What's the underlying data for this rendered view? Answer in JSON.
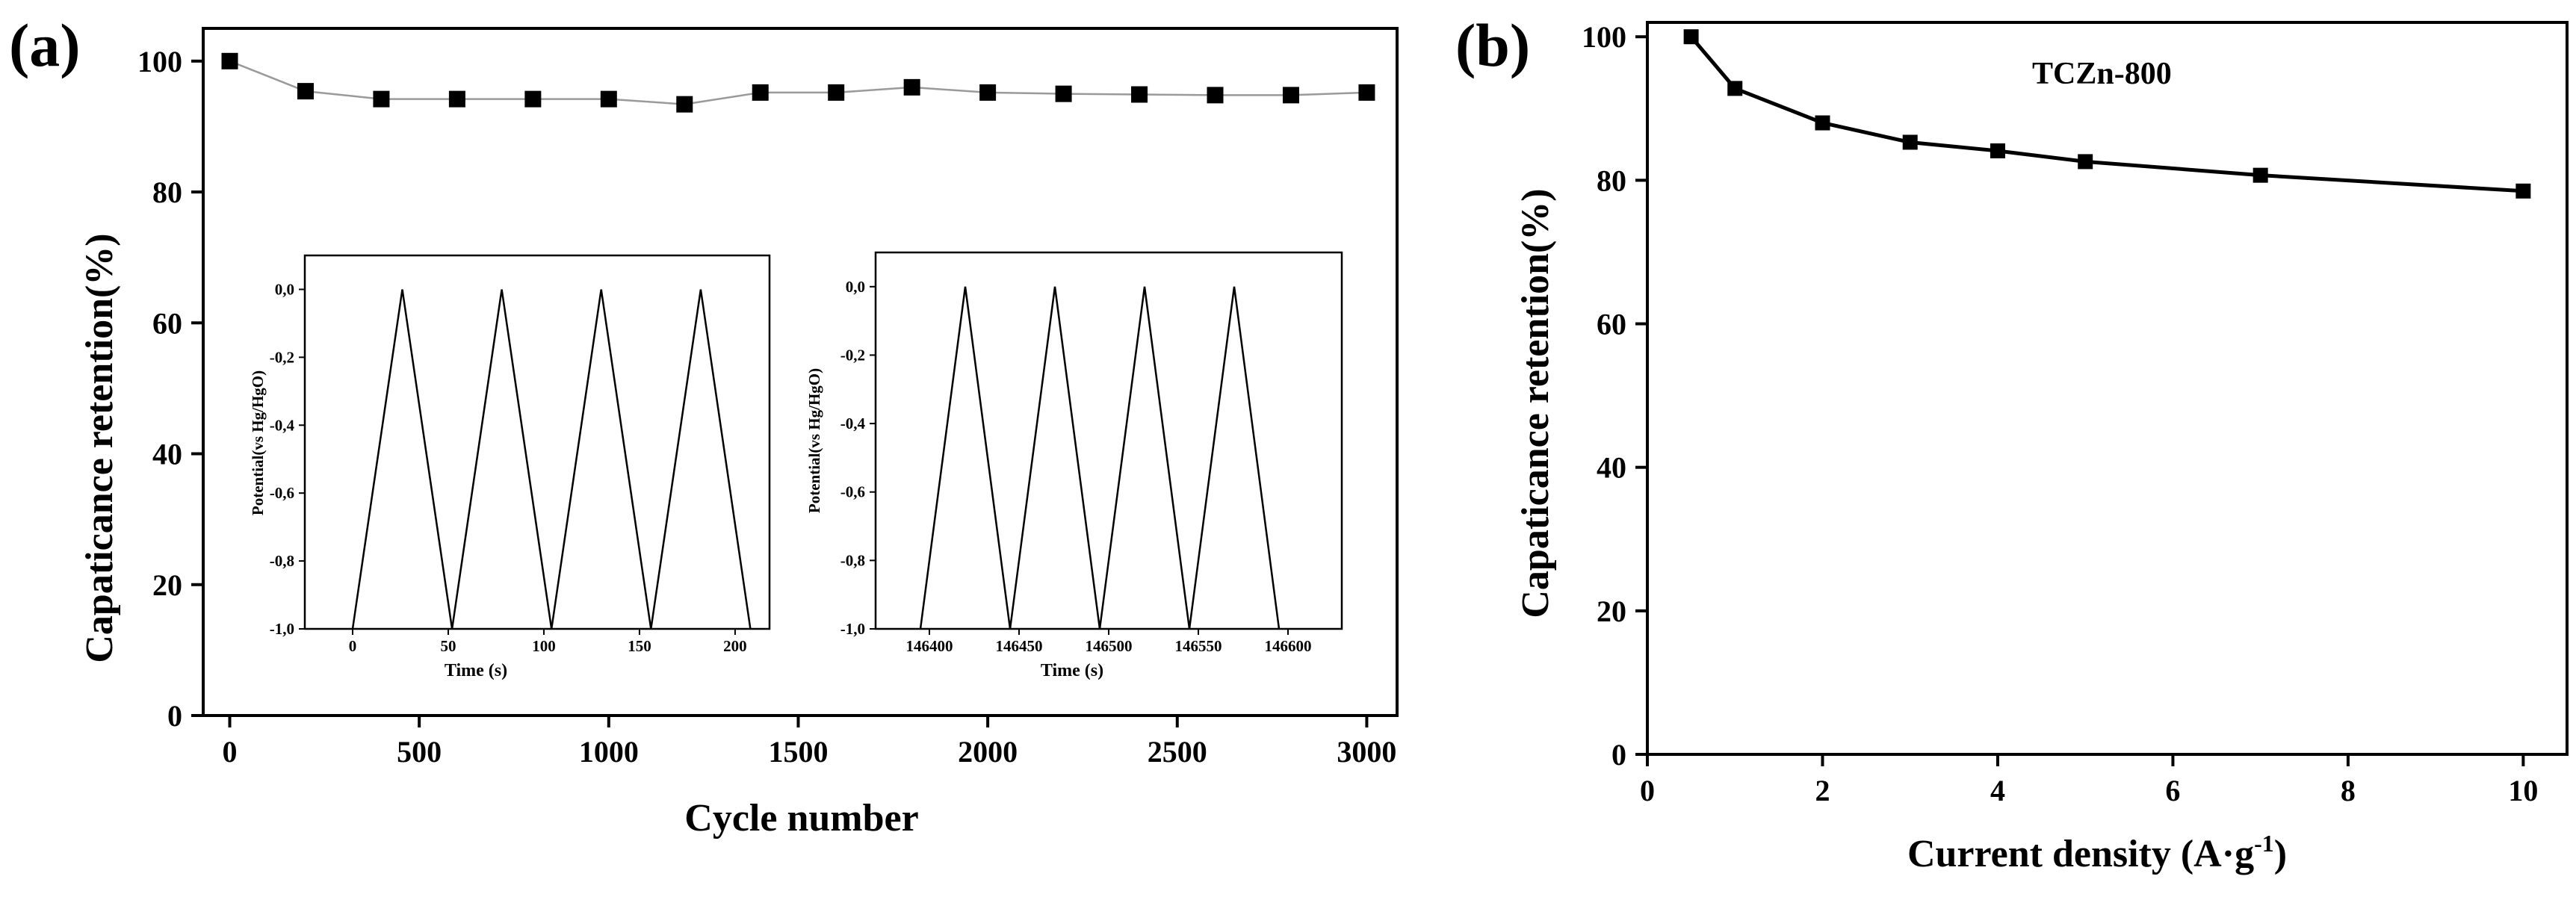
{
  "chart_data": [
    {
      "panel": "(a)",
      "type": "line",
      "title": "",
      "xlabel": "Cycle number",
      "ylabel": "Capaticance retention(%)",
      "xlim": [
        -70,
        3080
      ],
      "ylim": [
        0,
        105
      ],
      "xticks": [
        0,
        500,
        1000,
        1500,
        2000,
        2500,
        3000
      ],
      "yticks": [
        0,
        20,
        40,
        60,
        80,
        100
      ],
      "grid": false,
      "line_color": "#9a9a9a",
      "marker_color": "#000000",
      "x": [
        0,
        200,
        400,
        600,
        800,
        1000,
        1200,
        1400,
        1600,
        1800,
        2000,
        2200,
        2400,
        2600,
        2800,
        3000
      ],
      "y": [
        100,
        95.4,
        94.2,
        94.2,
        94.2,
        94.2,
        93.4,
        95.2,
        95.2,
        96.0,
        95.2,
        95.0,
        94.9,
        94.8,
        94.8,
        95.2
      ],
      "insets": [
        {
          "type": "line",
          "xlabel": "Time (s)",
          "ylabel": "Potential(vs Hg/HgO)",
          "xlim": [
            -25,
            218
          ],
          "ylim": [
            -1.0,
            0.1
          ],
          "xticks": [
            0,
            50,
            100,
            150,
            200
          ],
          "yticks": [
            0.0,
            -0.2,
            -0.4,
            -0.6,
            -0.8,
            -1.0
          ],
          "ytick_labels": [
            "0,0",
            "-0,2",
            "-0,4",
            "-0,6",
            "-0,8",
            "-1,0"
          ],
          "x": [
            0,
            26,
            52,
            78,
            104,
            130,
            156,
            182,
            208
          ],
          "y": [
            -1.0,
            0.0,
            -1.0,
            0.0,
            -1.0,
            0.0,
            -1.0,
            0.0,
            -1.0
          ]
        },
        {
          "type": "line",
          "xlabel": "Time (s)",
          "ylabel": "Potential(vs Hg/HgO)",
          "xlim": [
            146370,
            146630
          ],
          "ylim": [
            -1.0,
            0.1
          ],
          "xticks": [
            146400,
            146450,
            146500,
            146550,
            146600
          ],
          "yticks": [
            0.0,
            -0.2,
            -0.4,
            -0.6,
            -0.8,
            -1.0
          ],
          "ytick_labels": [
            "0,0",
            "-0,2",
            "-0,4",
            "-0,6",
            "-0,8",
            "-1,0"
          ],
          "x": [
            146395,
            146420,
            146445,
            146470,
            146495,
            146520,
            146545,
            146570,
            146595
          ],
          "y": [
            -1.0,
            0.0,
            -1.0,
            0.0,
            -1.0,
            0.0,
            -1.0,
            0.0,
            -1.0
          ]
        }
      ]
    },
    {
      "panel": "(b)",
      "type": "line",
      "title": "",
      "annotation": "TCZn-800",
      "xlabel": "Current density (A·g",
      "xlabel_sup": "-1",
      "xlabel_end": ")",
      "ylabel": "Capaticance retention(%)",
      "xlim": [
        0,
        10.5
      ],
      "ylim": [
        0,
        102
      ],
      "xticks": [
        0,
        2,
        4,
        6,
        8,
        10
      ],
      "yticks": [
        0,
        20,
        40,
        60,
        80,
        100
      ],
      "grid": false,
      "line_color": "#000000",
      "marker_color": "#000000",
      "x": [
        0.5,
        1,
        2,
        3,
        4,
        5,
        7,
        10
      ],
      "y": [
        100,
        92.8,
        88.0,
        85.3,
        84.1,
        82.6,
        80.7,
        78.5
      ]
    }
  ]
}
